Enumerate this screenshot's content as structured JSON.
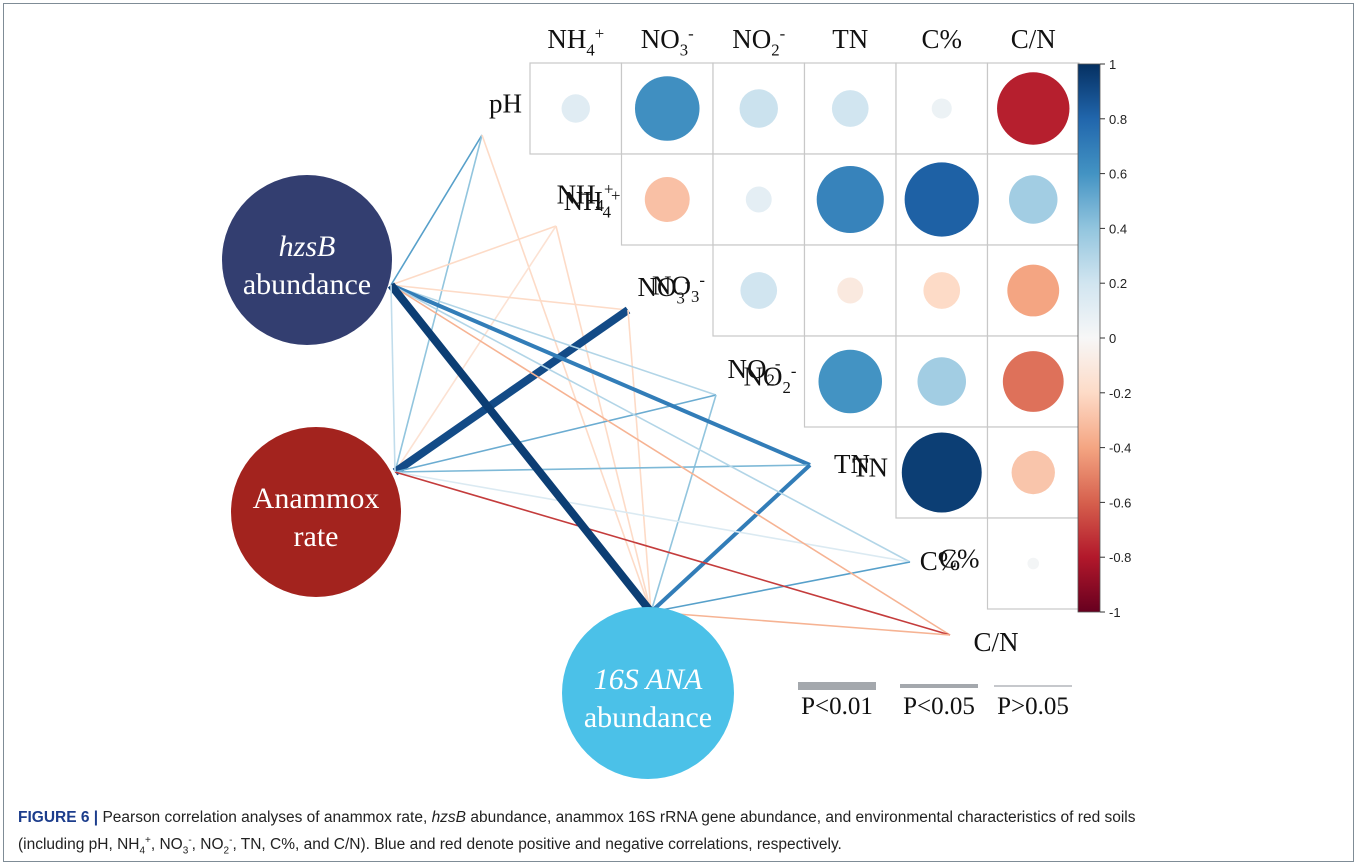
{
  "matrix": {
    "column_headers": [
      {
        "base": "NH",
        "sub": "4",
        "sup": "+"
      },
      {
        "base": "NO",
        "sub": "3",
        "sup": "-"
      },
      {
        "base": "NO",
        "sub": "2",
        "sup": "-"
      },
      {
        "base": "TN",
        "sub": "",
        "sup": ""
      },
      {
        "base": "C%",
        "sub": "",
        "sup": ""
      },
      {
        "base": "C/N",
        "sub": "",
        "sup": ""
      }
    ],
    "row_labels": [
      {
        "base": "pH",
        "sub": "",
        "sup": ""
      },
      {
        "base": "NH",
        "sub": "4",
        "sup": "+"
      },
      {
        "base": "NO",
        "sub": "3",
        "sup": "-"
      },
      {
        "base": "NO",
        "sub": "2",
        "sup": "-"
      },
      {
        "base": "TN",
        "sub": "",
        "sup": ""
      },
      {
        "base": "C%",
        "sub": "",
        "sup": ""
      }
    ],
    "correlations": [
      [
        0.12,
        0.62,
        0.22,
        0.2,
        0.06,
        -0.78
      ],
      [
        null,
        -0.3,
        0.1,
        0.67,
        0.82,
        0.35
      ],
      [
        null,
        null,
        0.2,
        -0.1,
        -0.2,
        -0.4
      ],
      [
        null,
        null,
        null,
        0.6,
        0.35,
        -0.55
      ],
      [
        null,
        null,
        null,
        null,
        0.95,
        -0.28
      ],
      [
        null,
        null,
        null,
        null,
        null,
        0.02
      ]
    ]
  },
  "colorbar": {
    "ticks": [
      "1",
      "0.8",
      "0.6",
      "0.4",
      "0.2",
      "0",
      "-0.2",
      "-0.4",
      "-0.6",
      "-0.8",
      "-1"
    ],
    "positive_color": "#053061",
    "negative_color": "#67001f"
  },
  "nodes": [
    {
      "id": "hzsb",
      "line1": "hzsB",
      "line2": "abundance",
      "color": "#333e70"
    },
    {
      "id": "anammox",
      "line1": "Anammox",
      "line2": "rate",
      "color": "#a3231e"
    },
    {
      "id": "ana16s",
      "line1": "16S ANA",
      "line2": "abundance",
      "color": "#4bc1e8"
    }
  ],
  "env_labels": [
    {
      "base": "NH",
      "sub": "4",
      "sup": "+"
    },
    {
      "base": "NO",
      "sub": "3",
      "sup": "-"
    },
    {
      "base": "NO",
      "sub": "2",
      "sup": "-"
    },
    {
      "base": "TN",
      "sub": "",
      "sup": ""
    },
    {
      "base": "C%",
      "sub": "",
      "sup": ""
    },
    {
      "base": "C/N",
      "sub": "",
      "sup": ""
    }
  ],
  "edges": [
    {
      "node": "hzsb",
      "env": "pH",
      "r": 0.55,
      "p": "P>0.05"
    },
    {
      "node": "anammox",
      "env": "pH",
      "r": 0.4,
      "p": "P>0.05"
    },
    {
      "node": "ana16s",
      "env": "pH",
      "r": -0.2,
      "p": "P>0.05"
    },
    {
      "node": "hzsb",
      "env": "NH4",
      "r": -0.2,
      "p": "P>0.05"
    },
    {
      "node": "anammox",
      "env": "NH4",
      "r": -0.15,
      "p": "P>0.05"
    },
    {
      "node": "ana16s",
      "env": "NH4",
      "r": -0.2,
      "p": "P>0.05"
    },
    {
      "node": "hzsb",
      "env": "NO3",
      "r": -0.2,
      "p": "P>0.05"
    },
    {
      "node": "anammox",
      "env": "NO3",
      "r": 0.9,
      "p": "P<0.01"
    },
    {
      "node": "ana16s",
      "env": "NO3",
      "r": -0.2,
      "p": "P>0.05"
    },
    {
      "node": "hzsb",
      "env": "NO2",
      "r": 0.3,
      "p": "P>0.05"
    },
    {
      "node": "anammox",
      "env": "NO2",
      "r": 0.5,
      "p": "P>0.05"
    },
    {
      "node": "ana16s",
      "env": "NO2",
      "r": 0.4,
      "p": "P>0.05"
    },
    {
      "node": "hzsb",
      "env": "TN",
      "r": 0.7,
      "p": "P<0.05"
    },
    {
      "node": "anammox",
      "env": "TN",
      "r": 0.45,
      "p": "P>0.05"
    },
    {
      "node": "ana16s",
      "env": "TN",
      "r": 0.7,
      "p": "P<0.05"
    },
    {
      "node": "hzsb",
      "env": "C%",
      "r": 0.3,
      "p": "P>0.05"
    },
    {
      "node": "anammox",
      "env": "C%",
      "r": 0.15,
      "p": "P>0.05"
    },
    {
      "node": "ana16s",
      "env": "C%",
      "r": 0.55,
      "p": "P>0.05"
    },
    {
      "node": "hzsb",
      "env": "C/N",
      "r": -0.35,
      "p": "P>0.05"
    },
    {
      "node": "anammox",
      "env": "C/N",
      "r": -0.7,
      "p": "P>0.05"
    },
    {
      "node": "ana16s",
      "env": "C/N",
      "r": -0.35,
      "p": "P>0.05"
    },
    {
      "node": "hzsb",
      "env": "hzsb-node-16s",
      "r": 0.95,
      "p": "P<0.01"
    },
    {
      "node": "hzsb",
      "env": "anammox-node",
      "r": 0.25,
      "p": "P>0.05"
    }
  ],
  "legend": [
    "P<0.01",
    "P<0.05",
    "P>0.05"
  ],
  "caption": {
    "label": "FIGURE 6 |",
    "t1": " Pearson correlation analyses of anammox rate, ",
    "t2": "hzsB",
    "t3": " abundance, anammox 16S rRNA gene abundance, and environmental characteristics of red soils",
    "t4": "(including pH, NH",
    "nh4_sub": "4",
    "nh4_sup": "+",
    "t5": ", NO",
    "no3_sub": "3",
    "no3_sup": "-",
    "t6": ", NO",
    "no2_sub": "2",
    "no2_sup": "-",
    "t7": ", TN, C%, and C/N). Blue and red denote positive and negative correlations, respectively."
  }
}
